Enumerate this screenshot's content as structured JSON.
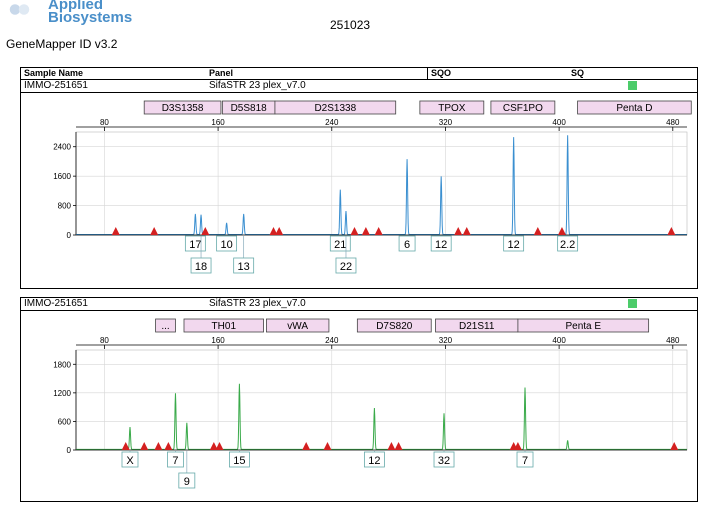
{
  "header": {
    "brand_line1": "Applied",
    "brand_line2": "Biosystems",
    "app_version": "GeneMapper ID v3.2",
    "run_id": "251023"
  },
  "table_header": {
    "sample_name": "Sample Name",
    "panel": "Panel",
    "sqo": "SQO",
    "sq": "SQ"
  },
  "colors": {
    "blue_trace": "#3a8fd0",
    "green_trace": "#3aaa4a",
    "bin_fill": "#f2d8ee",
    "peak_marker": "#d42020",
    "sq_indicator": "#4ccc6a"
  },
  "chart_data": [
    {
      "type": "line",
      "sample": "IMMO-251651",
      "panel": "SifaSTR 23 plex_v7.0",
      "dye": "blue",
      "xlim": [
        60,
        490
      ],
      "ylim": [
        0,
        2800
      ],
      "x_ticks": [
        80,
        160,
        240,
        320,
        400,
        480
      ],
      "y_ticks": [
        0,
        800,
        1600,
        2400
      ],
      "grid": true,
      "markers": [
        {
          "name": "D3S1358",
          "start": 108,
          "end": 162
        },
        {
          "name": "D5S818",
          "start": 163,
          "end": 200
        },
        {
          "name": "D2S1338",
          "start": 200,
          "end": 285
        },
        {
          "name": "TPOX",
          "start": 302,
          "end": 347
        },
        {
          "name": "CSF1PO",
          "start": 352,
          "end": 397
        },
        {
          "name": "Penta D",
          "start": 413,
          "end": 493
        }
      ],
      "peaks": [
        {
          "x": 144,
          "y": 560,
          "allele": "17",
          "row": 1
        },
        {
          "x": 148,
          "y": 540,
          "allele": "18",
          "row": 2
        },
        {
          "x": 166,
          "y": 320,
          "allele": "10",
          "row": 1
        },
        {
          "x": 178,
          "y": 560,
          "allele": "13",
          "row": 2
        },
        {
          "x": 246,
          "y": 1220,
          "allele": "21",
          "row": 1
        },
        {
          "x": 250,
          "y": 640,
          "allele": "22",
          "row": 2
        },
        {
          "x": 293,
          "y": 2050,
          "allele": "6",
          "row": 1
        },
        {
          "x": 317,
          "y": 1580,
          "allele": "12",
          "row": 1
        },
        {
          "x": 368,
          "y": 2650,
          "allele": "12",
          "row": 1
        },
        {
          "x": 406,
          "y": 2700,
          "allele": "2.2",
          "row": 1
        }
      ],
      "artifacts": [
        88,
        115,
        151,
        199,
        203,
        256,
        264,
        273,
        329,
        335,
        385,
        402,
        479
      ]
    },
    {
      "type": "line",
      "sample": "IMMO-251651",
      "panel": "SifaSTR 23 plex_v7.0",
      "dye": "green",
      "xlim": [
        60,
        490
      ],
      "ylim": [
        0,
        2100
      ],
      "x_ticks": [
        80,
        160,
        240,
        320,
        400,
        480
      ],
      "y_ticks": [
        0,
        600,
        1200,
        1800
      ],
      "grid": true,
      "markers": [
        {
          "name": "...",
          "start": 116,
          "end": 130
        },
        {
          "name": "TH01",
          "start": 136,
          "end": 192
        },
        {
          "name": "vWA",
          "start": 194,
          "end": 238
        },
        {
          "name": "D7S820",
          "start": 258,
          "end": 310
        },
        {
          "name": "D21S11",
          "start": 313,
          "end": 371
        },
        {
          "name": "Penta E",
          "start": 371,
          "end": 463
        }
      ],
      "peaks": [
        {
          "x": 98,
          "y": 470,
          "allele": "X",
          "row": 1
        },
        {
          "x": 130,
          "y": 1180,
          "allele": "7",
          "row": 1
        },
        {
          "x": 138,
          "y": 560,
          "allele": "9",
          "row": 2
        },
        {
          "x": 175,
          "y": 1380,
          "allele": "15",
          "row": 1
        },
        {
          "x": 270,
          "y": 870,
          "allele": "12",
          "row": 1
        },
        {
          "x": 319,
          "y": 760,
          "allele": "32",
          "row": 1
        },
        {
          "x": 376,
          "y": 1300,
          "allele": "7",
          "row": 1
        }
      ],
      "minor_peaks": [
        {
          "x": 406,
          "y": 190
        }
      ],
      "artifacts": [
        95,
        108,
        118,
        125,
        157,
        161,
        222,
        237,
        282,
        287,
        368,
        371,
        481
      ]
    }
  ]
}
